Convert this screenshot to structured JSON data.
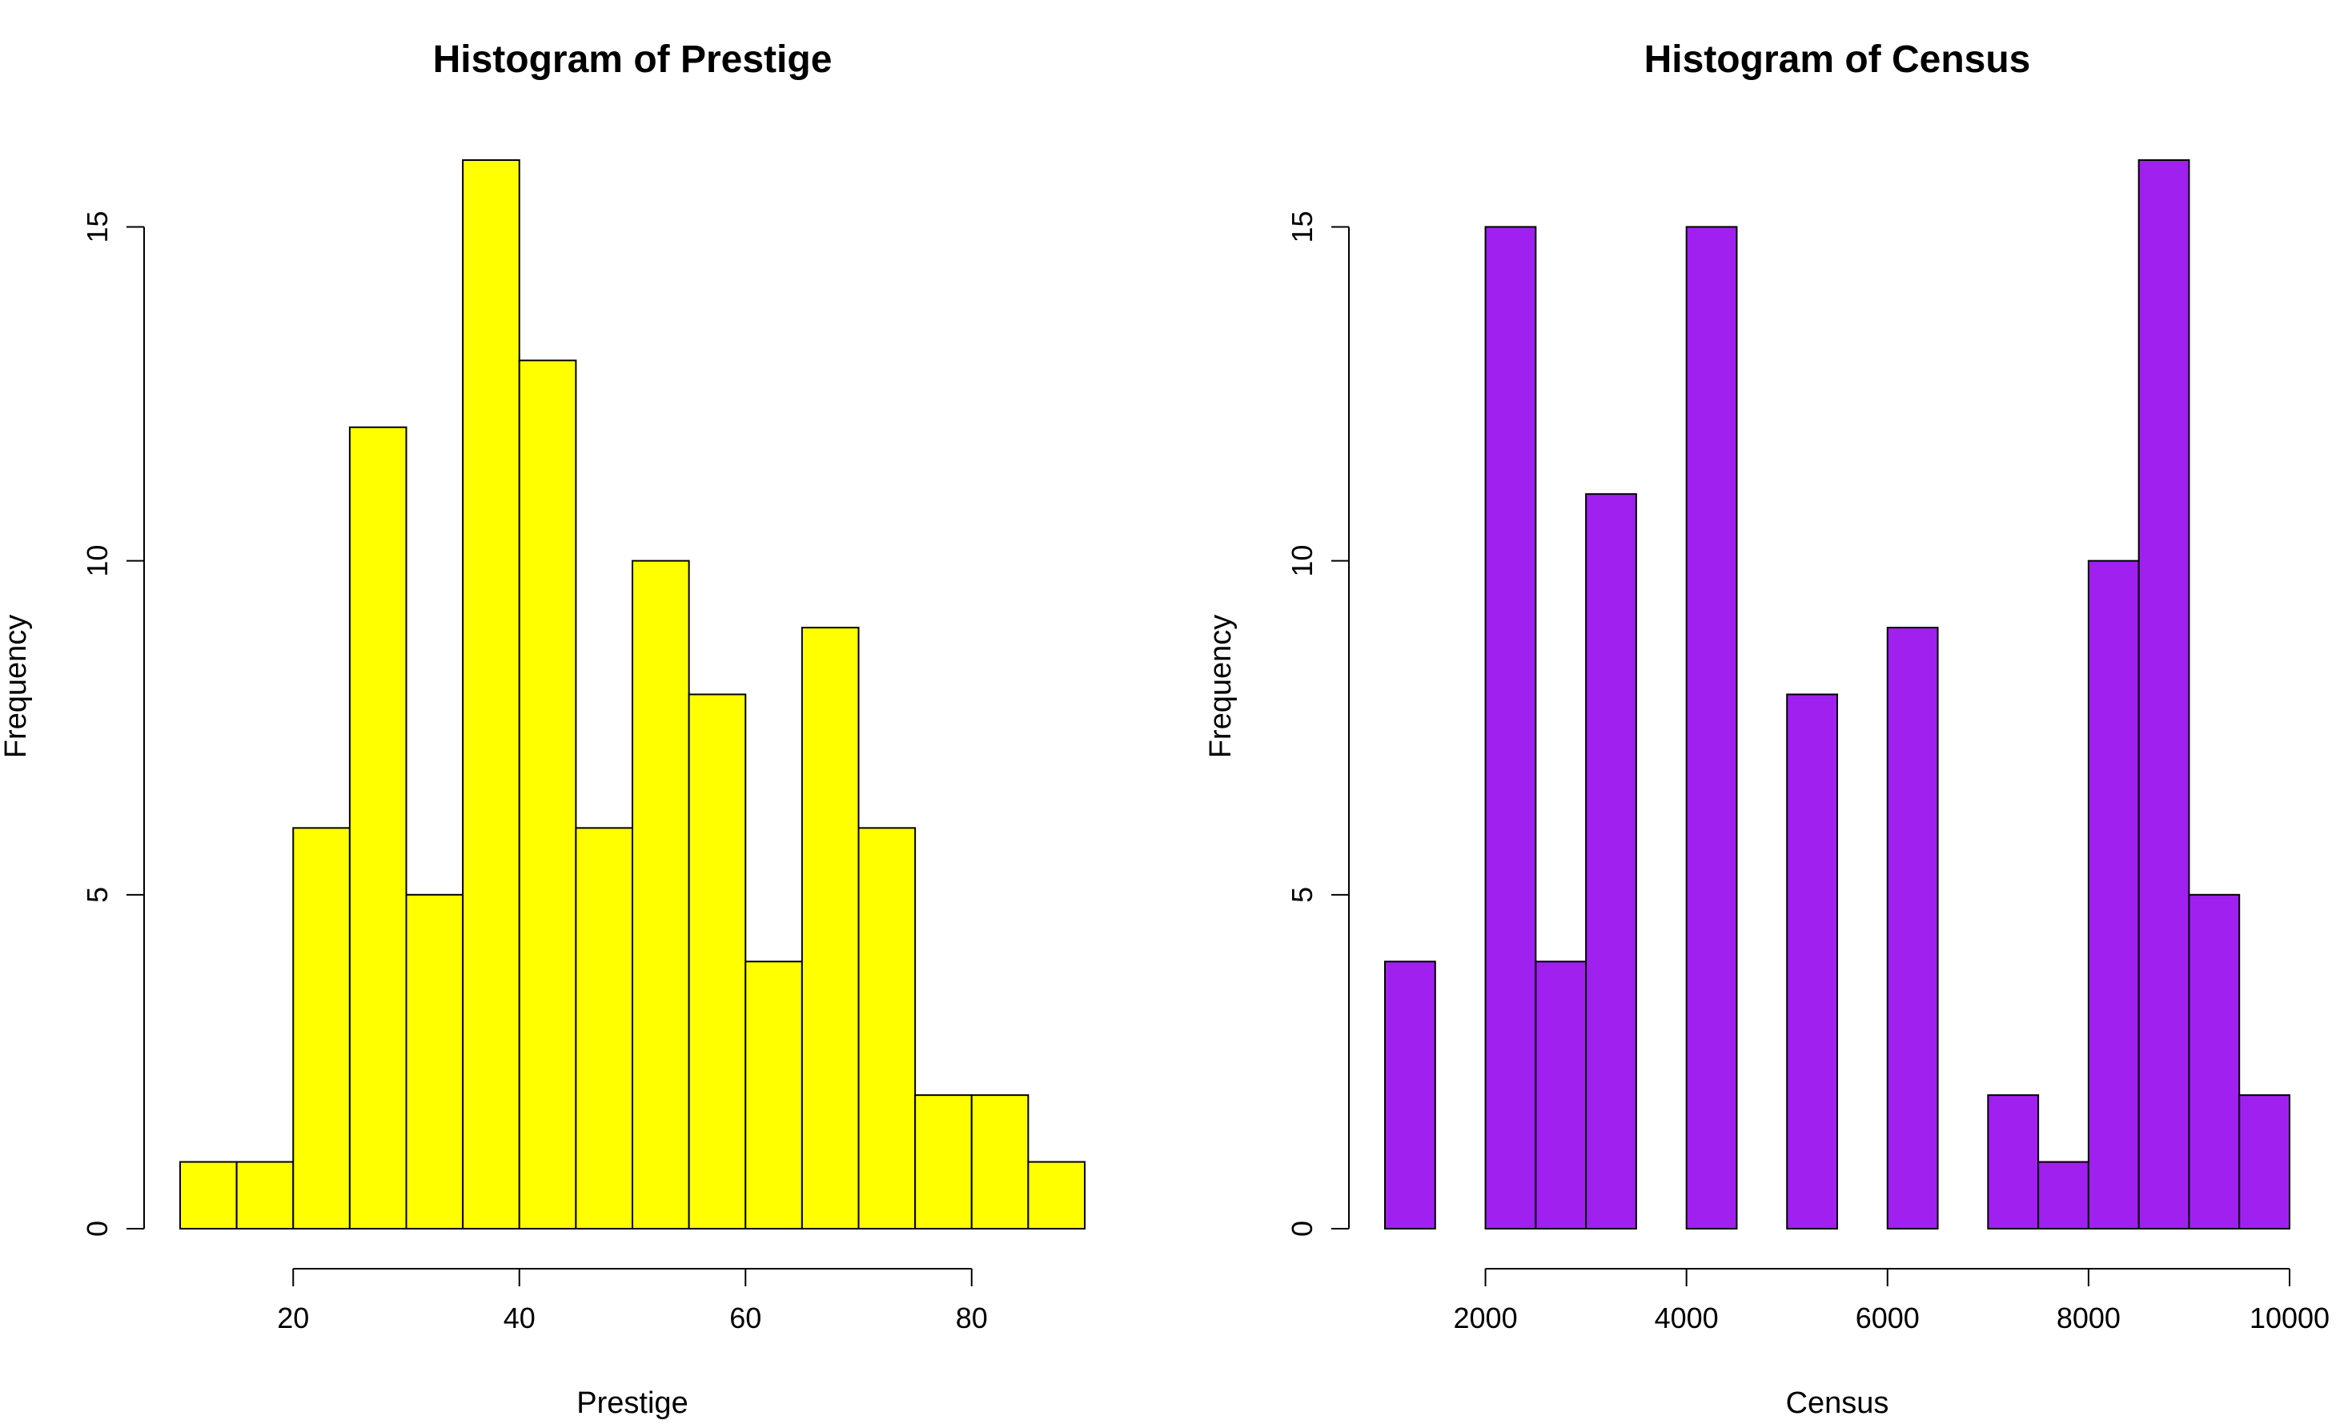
{
  "chart_data": [
    {
      "type": "bar",
      "title": "Histogram of Prestige",
      "xlabel": "Prestige",
      "ylabel": "Frequency",
      "bar_color": "#ffff00",
      "bins": [
        [
          10,
          15
        ],
        [
          15,
          20
        ],
        [
          20,
          25
        ],
        [
          25,
          30
        ],
        [
          30,
          35
        ],
        [
          35,
          40
        ],
        [
          40,
          45
        ],
        [
          45,
          50
        ],
        [
          50,
          55
        ],
        [
          55,
          60
        ],
        [
          60,
          65
        ],
        [
          65,
          70
        ],
        [
          70,
          75
        ],
        [
          75,
          80
        ],
        [
          80,
          85
        ],
        [
          85,
          90
        ]
      ],
      "values": [
        1,
        1,
        6,
        12,
        5,
        16,
        13,
        6,
        10,
        8,
        4,
        9,
        6,
        2,
        2,
        1
      ],
      "xticks": [
        20,
        40,
        60,
        80
      ],
      "yticks": [
        0,
        5,
        10,
        15
      ],
      "xlim": [
        10,
        90
      ],
      "ylim": [
        0,
        16
      ],
      "grid": false
    },
    {
      "type": "bar",
      "title": "Histogram of Census",
      "xlabel": "Census",
      "ylabel": "Frequency",
      "bar_color": "#a020f0",
      "bins": [
        [
          1000,
          1500
        ],
        [
          1500,
          2000
        ],
        [
          2000,
          2500
        ],
        [
          2500,
          3000
        ],
        [
          3000,
          3500
        ],
        [
          3500,
          4000
        ],
        [
          4000,
          4500
        ],
        [
          4500,
          5000
        ],
        [
          5000,
          5500
        ],
        [
          5500,
          6000
        ],
        [
          6000,
          6500
        ],
        [
          6500,
          7000
        ],
        [
          7000,
          7500
        ],
        [
          7500,
          8000
        ],
        [
          8000,
          8500
        ],
        [
          8500,
          9000
        ],
        [
          9000,
          9500
        ],
        [
          9500,
          10000
        ]
      ],
      "values": [
        4,
        0,
        15,
        4,
        11,
        0,
        15,
        0,
        8,
        0,
        9,
        0,
        2,
        1,
        10,
        16,
        5,
        2
      ],
      "xticks": [
        2000,
        4000,
        6000,
        8000,
        10000
      ],
      "yticks": [
        0,
        5,
        10,
        15
      ],
      "xlim": [
        1000,
        10000
      ],
      "ylim": [
        0,
        16
      ],
      "grid": false
    }
  ]
}
